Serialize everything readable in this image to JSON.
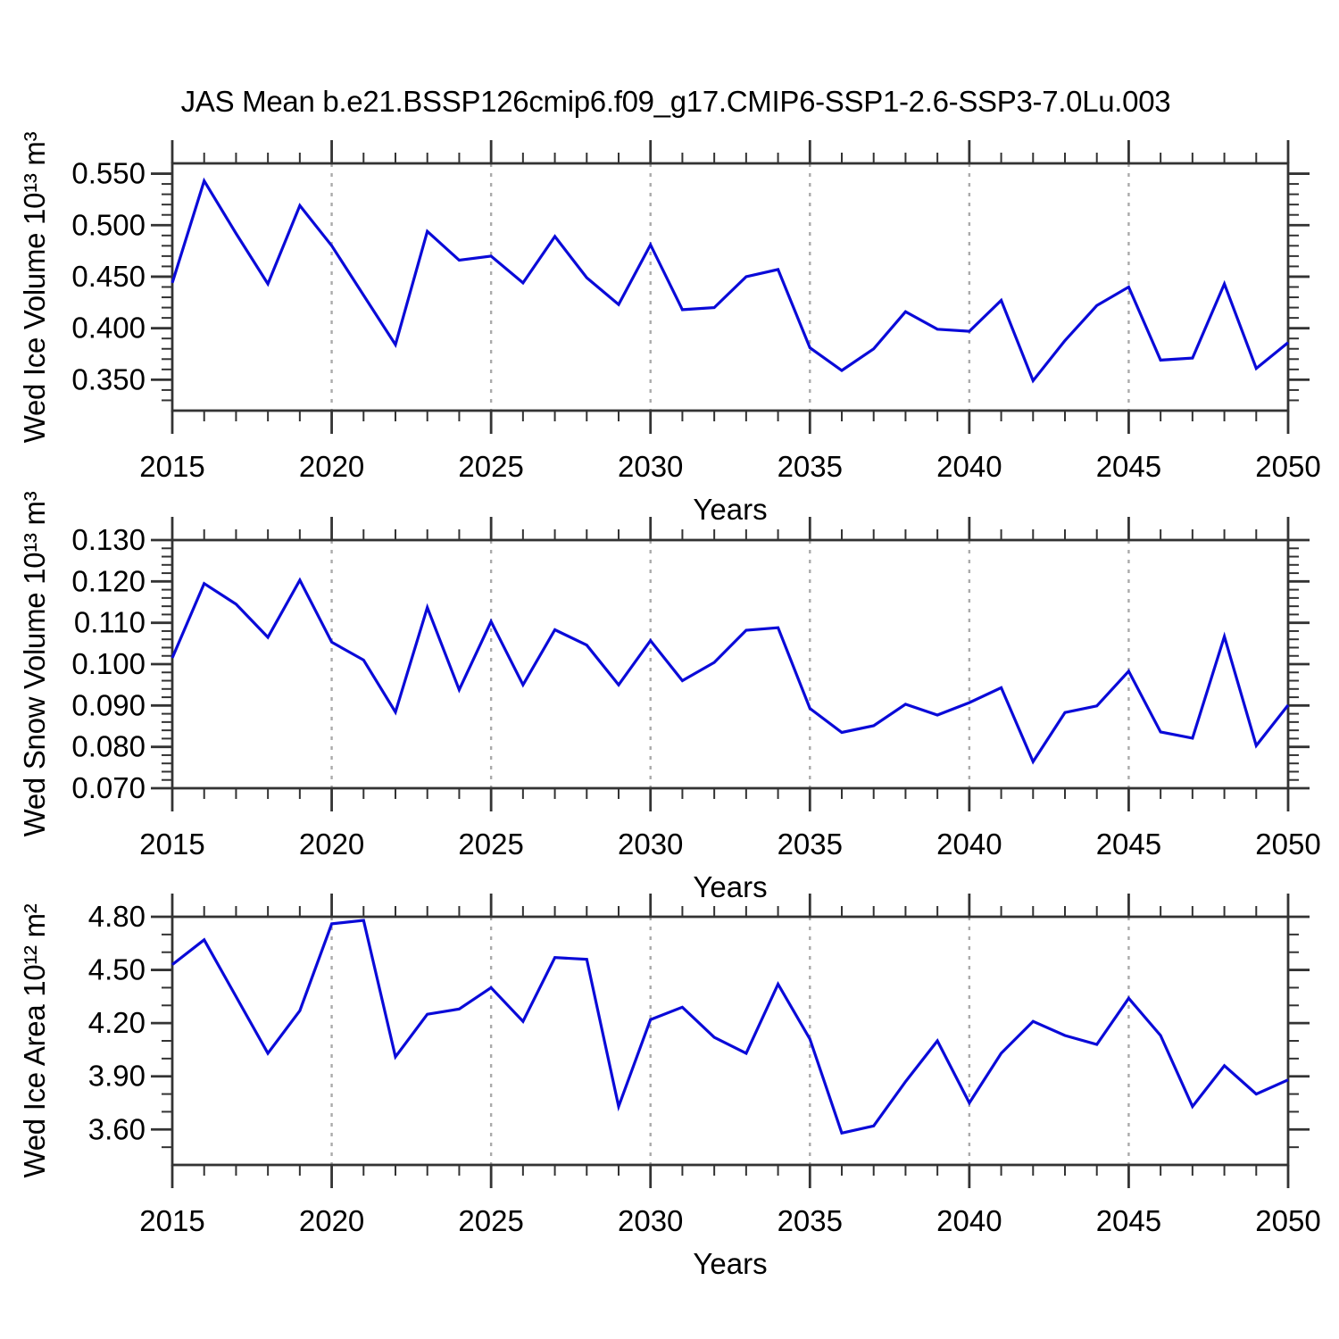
{
  "title": "JAS Mean b.e21.BSSP126cmip6.f09_g17.CMIP6-SSP1-2.6-SSP3-7.0Lu.003",
  "colors": {
    "line": "#0a0ad8",
    "grid": "#aaaaaa",
    "axis": "#333333",
    "text": "#000000",
    "background": "#ffffff"
  },
  "x_axis": {
    "label": "Years",
    "xlim": [
      2015,
      2050
    ],
    "major_tick_step": 5,
    "minor_tick_step": 1,
    "tick_labels": [
      "2015",
      "2020",
      "2025",
      "2030",
      "2035",
      "2040",
      "2045",
      "2050"
    ],
    "gridline_years": [
      2020,
      2025,
      2030,
      2035,
      2040,
      2045
    ]
  },
  "years": [
    2015,
    2016,
    2017,
    2018,
    2019,
    2020,
    2021,
    2022,
    2023,
    2024,
    2025,
    2026,
    2027,
    2028,
    2029,
    2030,
    2031,
    2032,
    2033,
    2034,
    2035,
    2036,
    2037,
    2038,
    2039,
    2040,
    2041,
    2042,
    2043,
    2044,
    2045,
    2046,
    2047,
    2048,
    2049,
    2050
  ],
  "chart_data": [
    {
      "type": "line",
      "name": "wed-ice-volume",
      "ylabel": "Wed Ice Volume 10¹³ m³",
      "xlabel": "Years",
      "ylim": [
        0.32,
        0.56
      ],
      "yticks": [
        0.35,
        0.4,
        0.45,
        0.5,
        0.55
      ],
      "ytick_labels": [
        "0.350",
        "0.400",
        "0.450",
        "0.500",
        "0.550"
      ],
      "y_minor_step": 0.01,
      "grid": "vertical-dashed",
      "legend": "none",
      "values": [
        0.444,
        0.543,
        0.492,
        0.443,
        0.519,
        0.48,
        0.432,
        0.384,
        0.494,
        0.466,
        0.47,
        0.444,
        0.489,
        0.449,
        0.423,
        0.481,
        0.418,
        0.42,
        0.45,
        0.457,
        0.381,
        0.359,
        0.38,
        0.416,
        0.399,
        0.397,
        0.427,
        0.349,
        0.388,
        0.422,
        0.44,
        0.369,
        0.371,
        0.443,
        0.361,
        0.386
      ]
    },
    {
      "type": "line",
      "name": "wed-snow-volume",
      "ylabel": "Wed Snow Volume 10¹³ m³",
      "xlabel": "Years",
      "ylim": [
        0.07,
        0.13
      ],
      "yticks": [
        0.07,
        0.08,
        0.09,
        0.1,
        0.11,
        0.12,
        0.13
      ],
      "ytick_labels": [
        "0.070",
        "0.080",
        "0.090",
        "0.100",
        "0.110",
        "0.120",
        "0.130"
      ],
      "y_minor_step": 0.002,
      "grid": "vertical-dashed",
      "legend": "none",
      "values": [
        0.1015,
        0.1195,
        0.1145,
        0.1065,
        0.1203,
        0.1053,
        0.101,
        0.0884,
        0.1137,
        0.0938,
        0.1103,
        0.095,
        0.1083,
        0.1046,
        0.095,
        0.1057,
        0.096,
        0.1004,
        0.1082,
        0.1088,
        0.0893,
        0.0835,
        0.0851,
        0.0903,
        0.0877,
        0.0907,
        0.0943,
        0.0764,
        0.0883,
        0.0899,
        0.0983,
        0.0836,
        0.0821,
        0.1067,
        0.0803,
        0.0901
      ]
    },
    {
      "type": "line",
      "name": "wed-ice-area",
      "ylabel": "Wed Ice Area 10¹² m²",
      "xlabel": "Years",
      "ylim": [
        3.4,
        4.8
      ],
      "yticks": [
        3.6,
        3.9,
        4.2,
        4.5,
        4.8
      ],
      "ytick_labels": [
        "3.60",
        "3.90",
        "4.20",
        "4.50",
        "4.80"
      ],
      "y_minor_step": 0.1,
      "grid": "vertical-dashed",
      "legend": "none",
      "values": [
        4.53,
        4.67,
        4.35,
        4.03,
        4.27,
        4.76,
        4.78,
        4.01,
        4.25,
        4.28,
        4.4,
        4.21,
        4.57,
        4.56,
        3.73,
        4.22,
        4.29,
        4.12,
        4.03,
        4.42,
        4.11,
        3.58,
        3.62,
        3.87,
        4.1,
        3.75,
        4.03,
        4.21,
        4.13,
        4.08,
        4.34,
        4.13,
        3.73,
        3.96,
        3.8,
        3.88
      ]
    }
  ]
}
